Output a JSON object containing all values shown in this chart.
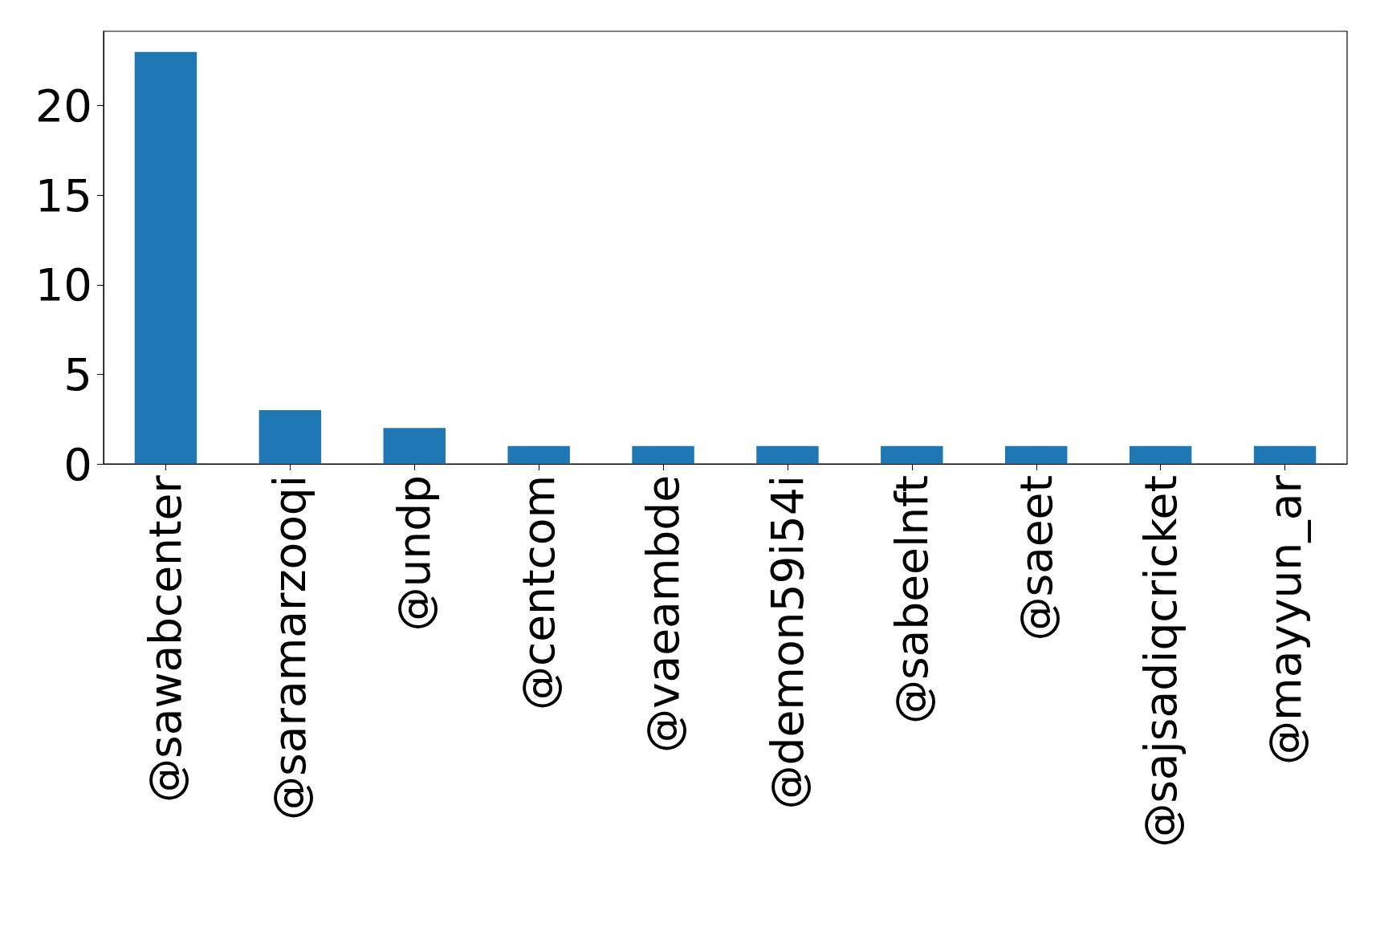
{
  "chart_data": {
    "type": "bar",
    "categories": [
      "@sawabcenter",
      "@saramarzooqi",
      "@undp",
      "@centcom",
      "@vaeambde",
      "@demon59i54i",
      "@sabeelnft",
      "@saeet",
      "@sajsadiqcricket",
      "@mayyun_ar"
    ],
    "values": [
      23,
      3,
      2,
      1,
      1,
      1,
      1,
      1,
      1,
      1
    ],
    "color": "#1f77b4",
    "ylim": [
      0,
      24.15
    ],
    "yticks": [
      0,
      5,
      10,
      15,
      20
    ],
    "grid": false
  }
}
